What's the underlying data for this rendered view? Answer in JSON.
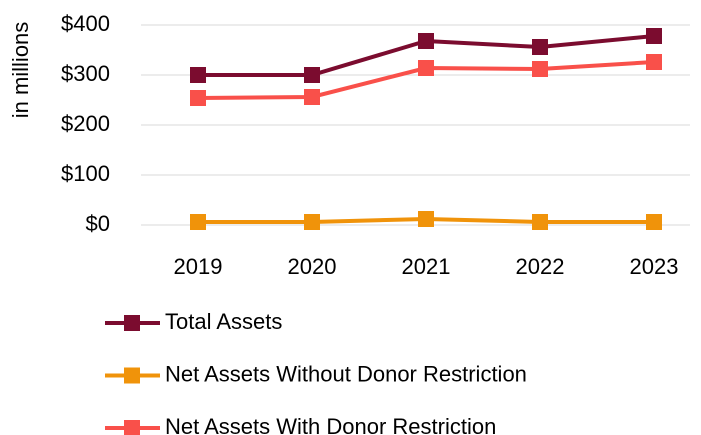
{
  "chart_data": {
    "type": "line",
    "y_label": "in millions",
    "categories": [
      "2019",
      "2020",
      "2021",
      "2022",
      "2023"
    ],
    "series": [
      {
        "name": "Total Assets",
        "color": "#7b0c2f",
        "values": [
          300,
          300,
          368,
          356,
          378
        ]
      },
      {
        "name": "Net Assets Without Donor Restriction",
        "color": "#f0930a",
        "values": [
          6,
          6,
          12,
          6,
          6
        ]
      },
      {
        "name": "Net Assets With Donor Restriction",
        "color": "#f9504a",
        "values": [
          254,
          256,
          314,
          312,
          326
        ]
      }
    ],
    "ylim": [
      0,
      400
    ],
    "yticks": [
      {
        "value": 0,
        "label": "$0"
      },
      {
        "value": 100,
        "label": "$100"
      },
      {
        "value": 200,
        "label": "$200"
      },
      {
        "value": 300,
        "label": "$300"
      },
      {
        "value": 400,
        "label": "$400"
      }
    ],
    "grid": true,
    "legend": "bottom"
  }
}
